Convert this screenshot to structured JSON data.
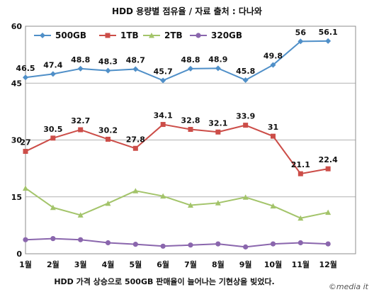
{
  "chart_data": {
    "type": "line",
    "title": "HDD 용량별 점유율 / 자료 출처 : 다나와",
    "categories": [
      "1월",
      "2월",
      "3월",
      "4월",
      "5월",
      "6월",
      "7월",
      "8월",
      "9월",
      "10월",
      "11월",
      "12월"
    ],
    "ylim": [
      0,
      60
    ],
    "yticks": [
      0,
      15,
      30,
      45,
      60
    ],
    "grid": true,
    "legend_position": "top",
    "series": [
      {
        "name": "500GB",
        "color": "#4f8fc8",
        "marker": "diamond",
        "show_labels": true,
        "values": [
          46.5,
          47.4,
          48.8,
          48.3,
          48.7,
          45.7,
          48.8,
          48.9,
          45.8,
          49.8,
          56,
          56.1
        ]
      },
      {
        "name": "1TB",
        "color": "#cc4d48",
        "marker": "square",
        "show_labels": true,
        "values": [
          27,
          30.5,
          32.7,
          30.2,
          27.8,
          34.1,
          32.8,
          32.1,
          33.9,
          31,
          21.1,
          22.4
        ]
      },
      {
        "name": "2TB",
        "color": "#a3c46a",
        "marker": "triangle",
        "show_labels": false,
        "values": [
          17.3,
          12.2,
          10.2,
          13.3,
          16.6,
          15.2,
          12.8,
          13.4,
          14.9,
          12.6,
          9.4,
          10.9
        ]
      },
      {
        "name": "320GB",
        "color": "#8a66ad",
        "marker": "circle",
        "show_labels": false,
        "values": [
          3.7,
          4.0,
          3.7,
          2.9,
          2.5,
          2.0,
          2.3,
          2.6,
          1.8,
          2.6,
          2.9,
          2.6
        ]
      }
    ],
    "caption": "HDD 가격 상승으로 500GB 판매율이 늘어나는 기현상을 빚었다.",
    "watermark": "©media it"
  }
}
